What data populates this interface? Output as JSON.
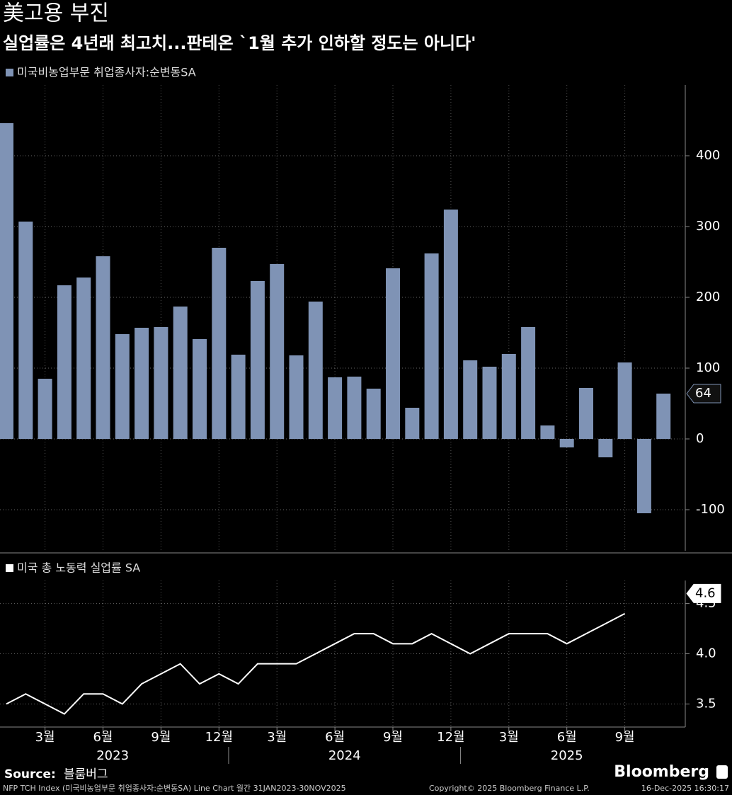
{
  "header": {
    "title": "美고용 부진",
    "subtitle": "실업률은 4년래 최고치...판테온 `1월 추가 인하할 정도는 아니다'"
  },
  "chart_data": [
    {
      "type": "bar",
      "series": [
        {
          "name": "미국비농업부문 취업종사자:순변동SA",
          "color": "#7f93b5",
          "values": [
            446,
            307,
            85,
            217,
            228,
            258,
            148,
            157,
            158,
            187,
            141,
            270,
            119,
            223,
            247,
            118,
            194,
            87,
            88,
            71,
            241,
            44,
            262,
            324,
            111,
            102,
            120,
            158,
            19,
            -12,
            72,
            -26,
            108,
            -105,
            64
          ]
        }
      ],
      "ylim": [
        -158,
        500
      ],
      "yticks": [
        -100,
        0,
        100,
        200,
        300,
        400
      ],
      "grid": true
    },
    {
      "type": "line",
      "categories": [
        null,
        null,
        "3월",
        null,
        null,
        "6월",
        null,
        null,
        "9월",
        null,
        null,
        "12월",
        null,
        null,
        "3월",
        null,
        null,
        "6월",
        null,
        null,
        "9월",
        null,
        null,
        "12월",
        null,
        null,
        "3월",
        null,
        null,
        "6월",
        null,
        null,
        "9월",
        null,
        null
      ],
      "years": [
        "2023",
        "2024",
        "2025"
      ],
      "series": [
        {
          "name": "미국 총 노동력 실업률 SA",
          "color": "#ffffff",
          "values": [
            3.5,
            3.6,
            3.5,
            3.4,
            3.6,
            3.6,
            3.5,
            3.7,
            3.8,
            3.9,
            3.7,
            3.8,
            3.7,
            3.9,
            3.9,
            3.9,
            4.0,
            4.1,
            4.2,
            4.2,
            4.1,
            4.1,
            4.2,
            4.1,
            4.0,
            4.1,
            4.2,
            4.2,
            4.2,
            4.1,
            4.2,
            4.3,
            4.4,
            null,
            4.6
          ]
        }
      ],
      "ylim": [
        3.27,
        4.73
      ],
      "yticks": [
        3.5,
        {
          "value": 4,
          "label": "4.0"
        },
        4.5
      ],
      "grid": true
    }
  ],
  "footer": {
    "source_label": "Source:",
    "source": "블룸버그",
    "brand": "Bloomberg",
    "note": "NFP TCH Index (미국비농업부문 취업종사자:순변동SA) Line Chart 월간 31JAN2023-30NOV2025",
    "copyright": "Copyright© 2025 Bloomberg Finance L.P.",
    "timestamp": "16-Dec-2025 16:30:17"
  }
}
